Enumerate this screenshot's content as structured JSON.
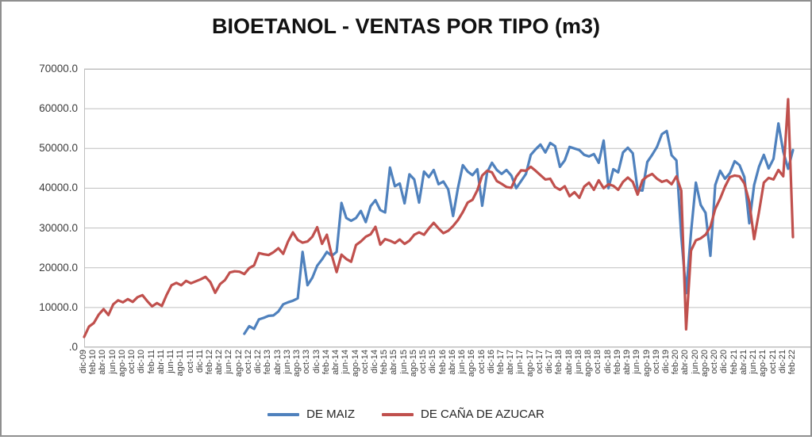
{
  "colors": {
    "gridline": "#BFBFBF",
    "plot_border": "#BFBFBF",
    "frame_border": "#8F8F8F",
    "axis_text": "#3D3D3D",
    "title_text": "#111111",
    "background": "#FFFFFF"
  },
  "chart_data": {
    "type": "line",
    "title": "BIOETANOL - VENTAS POR TIPO (m3)",
    "xlabel": "",
    "ylabel": "",
    "ylim": [
      0,
      70000
    ],
    "y_tick_step": 10000,
    "y_tick_labels": [
      "70000.0",
      "60000.0",
      "50000.0",
      "40000.0",
      "30000.0",
      "20000.0",
      "10000.0",
      ".0"
    ],
    "grid": true,
    "legend_position": "bottom",
    "x_tick_every": 2,
    "x": [
      "dic-09",
      "ene-10",
      "feb-10",
      "mar-10",
      "abr-10",
      "may-10",
      "jun-10",
      "jul-10",
      "ago-10",
      "sep-10",
      "oct-10",
      "nov-10",
      "dic-10",
      "ene-11",
      "feb-11",
      "mar-11",
      "abr-11",
      "may-11",
      "jun-11",
      "jul-11",
      "ago-11",
      "sep-11",
      "oct-11",
      "nov-11",
      "dic-11",
      "ene-12",
      "feb-12",
      "mar-12",
      "abr-12",
      "may-12",
      "jun-12",
      "jul-12",
      "ago-12",
      "sep-12",
      "oct-12",
      "nov-12",
      "dic-12",
      "ene-13",
      "feb-13",
      "mar-13",
      "abr-13",
      "may-13",
      "jun-13",
      "jul-13",
      "ago-13",
      "sep-13",
      "oct-13",
      "nov-13",
      "dic-13",
      "ene-14",
      "feb-14",
      "mar-14",
      "abr-14",
      "may-14",
      "jun-14",
      "jul-14",
      "ago-14",
      "sep-14",
      "oct-14",
      "nov-14",
      "dic-14",
      "ene-15",
      "feb-15",
      "mar-15",
      "abr-15",
      "may-15",
      "jun-15",
      "jul-15",
      "ago-15",
      "sep-15",
      "oct-15",
      "nov-15",
      "dic-15",
      "ene-16",
      "feb-16",
      "mar-16",
      "abr-16",
      "may-16",
      "jun-16",
      "jul-16",
      "ago-16",
      "sep-16",
      "oct-16",
      "nov-16",
      "dic-16",
      "ene-17",
      "feb-17",
      "mar-17",
      "abr-17",
      "may-17",
      "jun-17",
      "jul-17",
      "ago-17",
      "sep-17",
      "oct-17",
      "nov-17",
      "dic-17",
      "ene-18",
      "feb-18",
      "mar-18",
      "abr-18",
      "may-18",
      "jun-18",
      "jul-18",
      "ago-18",
      "sep-18",
      "oct-18",
      "nov-18",
      "dic-18",
      "ene-19",
      "feb-19",
      "mar-19",
      "abr-19",
      "may-19",
      "jun-19",
      "jul-19",
      "ago-19",
      "sep-19",
      "oct-19",
      "nov-19",
      "dic-19",
      "ene-20",
      "feb-20",
      "mar-20",
      "abr-20",
      "may-20",
      "jun-20",
      "jul-20",
      "ago-20",
      "sep-20",
      "oct-20",
      "nov-20",
      "dic-20",
      "ene-21",
      "feb-21",
      "mar-21",
      "abr-21",
      "may-21",
      "jun-21",
      "jul-21",
      "ago-21",
      "sep-21",
      "oct-21",
      "nov-21",
      "dic-21",
      "ene-22",
      "feb-22"
    ],
    "series": [
      {
        "name": "DE MAIZ",
        "color": "#4F81BD",
        "values": [
          null,
          null,
          null,
          null,
          null,
          null,
          null,
          null,
          null,
          null,
          null,
          null,
          null,
          null,
          null,
          null,
          null,
          null,
          null,
          null,
          null,
          null,
          null,
          null,
          null,
          null,
          null,
          null,
          null,
          null,
          null,
          null,
          null,
          3400,
          5300,
          4600,
          7000,
          7400,
          7900,
          8000,
          9000,
          10800,
          11300,
          11700,
          12300,
          24000,
          15600,
          17500,
          20500,
          22100,
          24000,
          23000,
          24000,
          36300,
          32500,
          31800,
          32500,
          34300,
          31500,
          35500,
          37000,
          34500,
          33900,
          45200,
          40500,
          41200,
          36200,
          43500,
          42200,
          36400,
          44200,
          42800,
          44600,
          41000,
          41700,
          39700,
          33000,
          40100,
          45800,
          44200,
          43300,
          44800,
          35600,
          44000,
          46400,
          44600,
          43600,
          44600,
          43200,
          40000,
          41800,
          43600,
          48400,
          49800,
          51000,
          49000,
          51400,
          50600,
          45400,
          47000,
          50400,
          50000,
          49600,
          48400,
          48000,
          48600,
          46400,
          52000,
          40000,
          44800,
          44000,
          49000,
          50200,
          48800,
          39600,
          39400,
          46600,
          48400,
          50400,
          53600,
          54400,
          48300,
          47000,
          28000,
          13600,
          28900,
          41400,
          35800,
          33800,
          23000,
          40800,
          44400,
          42400,
          43800,
          46800,
          45800,
          42800,
          31200,
          40800,
          45400,
          48400,
          45000,
          47400,
          56300,
          49200,
          44900,
          49600
        ]
      },
      {
        "name": "DE CAÑA DE AZUCAR",
        "color": "#C0504D",
        "values": [
          2600,
          5200,
          6100,
          8200,
          9600,
          8100,
          10800,
          11800,
          11300,
          12100,
          11400,
          12600,
          13100,
          11600,
          10300,
          11100,
          10400,
          13200,
          15600,
          16200,
          15600,
          16700,
          16100,
          16600,
          17100,
          17700,
          16400,
          13700,
          15900,
          16900,
          18800,
          19100,
          19000,
          18400,
          19900,
          20600,
          23700,
          23400,
          23200,
          23900,
          24900,
          23500,
          26600,
          28900,
          27000,
          26300,
          26600,
          27800,
          30200,
          26000,
          28300,
          23200,
          18900,
          23300,
          22200,
          21500,
          25700,
          26600,
          27800,
          28400,
          30300,
          25800,
          27200,
          26800,
          26200,
          27100,
          26000,
          26800,
          28300,
          28900,
          28300,
          29900,
          31300,
          29900,
          28700,
          29300,
          30500,
          32000,
          34000,
          36400,
          37100,
          39500,
          43200,
          44400,
          44000,
          41800,
          41100,
          40300,
          40100,
          42900,
          44500,
          44400,
          45400,
          44400,
          43300,
          42200,
          42400,
          40300,
          39600,
          40500,
          38000,
          39000,
          37600,
          40400,
          41400,
          39600,
          42000,
          40000,
          41000,
          40600,
          39600,
          41600,
          42700,
          41600,
          38400,
          42000,
          43000,
          43600,
          42400,
          41600,
          42000,
          41000,
          43000,
          39400,
          4500,
          24300,
          26900,
          27400,
          28300,
          30300,
          34800,
          37400,
          40400,
          42800,
          43200,
          43000,
          41200,
          36600,
          27200,
          34000,
          41400,
          42600,
          42200,
          44600,
          43000,
          62400,
          27700
        ]
      }
    ]
  }
}
